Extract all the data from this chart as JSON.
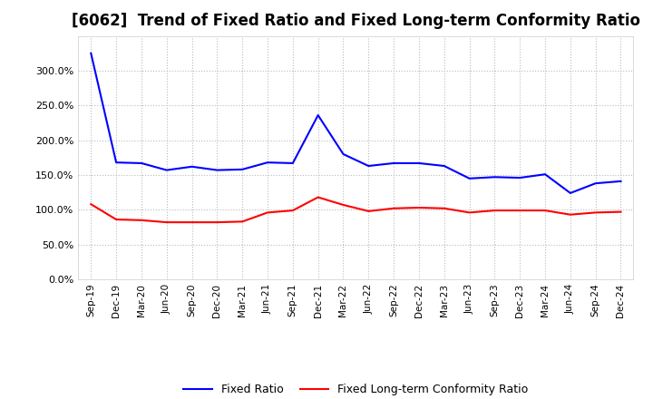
{
  "title": "[6062]  Trend of Fixed Ratio and Fixed Long-term Conformity Ratio",
  "labels": [
    "Sep-19",
    "Dec-19",
    "Mar-20",
    "Jun-20",
    "Sep-20",
    "Dec-20",
    "Mar-21",
    "Jun-21",
    "Sep-21",
    "Dec-21",
    "Mar-22",
    "Jun-22",
    "Sep-22",
    "Dec-22",
    "Mar-23",
    "Jun-23",
    "Sep-23",
    "Dec-23",
    "Mar-24",
    "Jun-24",
    "Sep-24",
    "Dec-24"
  ],
  "fixed_ratio": [
    325,
    168,
    167,
    157,
    162,
    157,
    158,
    168,
    167,
    236,
    180,
    163,
    167,
    167,
    163,
    145,
    147,
    146,
    151,
    124,
    138,
    141
  ],
  "fixed_lt_ratio": [
    108,
    86,
    85,
    82,
    82,
    82,
    83,
    96,
    99,
    118,
    107,
    98,
    102,
    103,
    102,
    96,
    99,
    99,
    99,
    93,
    96,
    97
  ],
  "ylim": [
    0,
    350
  ],
  "yticks": [
    0,
    50,
    100,
    150,
    200,
    250,
    300
  ],
  "fixed_ratio_color": "#0000FF",
  "fixed_lt_ratio_color": "#FF0000",
  "background_color": "#FFFFFF",
  "grid_color": "#BBBBBB",
  "title_fontsize": 12,
  "legend_labels": [
    "Fixed Ratio",
    "Fixed Long-term Conformity Ratio"
  ]
}
